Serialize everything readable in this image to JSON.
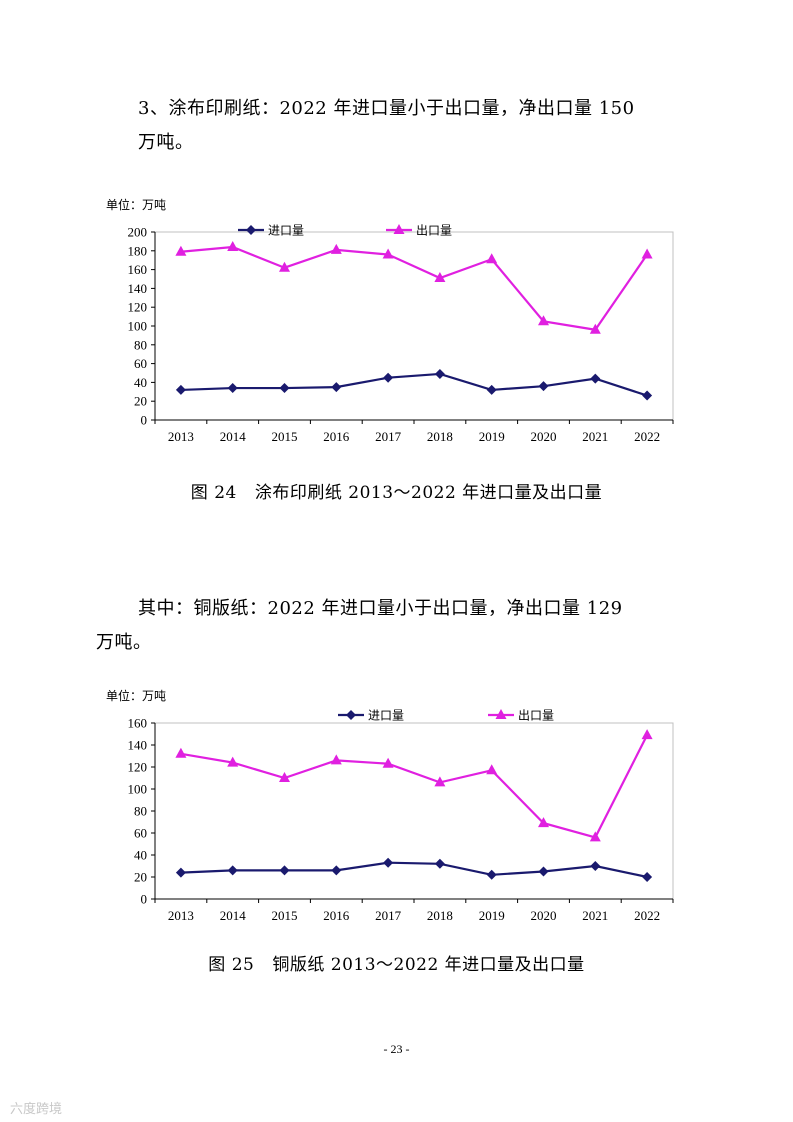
{
  "paragraphs": [
    {
      "line1": "3、涂布印刷纸：2022 年进口量小于出口量，净出口量 150",
      "line2": "万吨。"
    },
    {
      "line1": "其中：铜版纸：2022 年进口量小于出口量，净出口量 129",
      "line2": "万吨。"
    }
  ],
  "captions": [
    {
      "number": "图 24",
      "text": "涂布印刷纸 2013～2022 年进口量及出口量"
    },
    {
      "number": "图 25",
      "text": "铜版纸 2013～2022 年进口量及出口量"
    }
  ],
  "page_number": "- 23 -",
  "watermark": "六度跨境",
  "colors": {
    "import": "#1a1a6e",
    "export": "#e020e0"
  },
  "chart_data": [
    {
      "type": "line",
      "unit": "单位：万吨",
      "categories": [
        "2013",
        "2014",
        "2015",
        "2016",
        "2017",
        "2018",
        "2019",
        "2020",
        "2021",
        "2022"
      ],
      "ylim": [
        0,
        200
      ],
      "yticks": [
        0,
        20,
        40,
        60,
        80,
        100,
        120,
        140,
        160,
        180,
        200
      ],
      "series": [
        {
          "name": "进口量",
          "marker": "diamond",
          "values": [
            32,
            34,
            34,
            35,
            45,
            49,
            32,
            36,
            44,
            26
          ]
        },
        {
          "name": "出口量",
          "marker": "triangle",
          "values": [
            179,
            184,
            162,
            181,
            176,
            151,
            171,
            105,
            96,
            176
          ]
        }
      ],
      "legend": "top"
    },
    {
      "type": "line",
      "unit": "单位：万吨",
      "categories": [
        "2013",
        "2014",
        "2015",
        "2016",
        "2017",
        "2018",
        "2019",
        "2020",
        "2021",
        "2022"
      ],
      "ylim": [
        0,
        160
      ],
      "yticks": [
        0,
        20,
        40,
        60,
        80,
        100,
        120,
        140,
        160
      ],
      "series": [
        {
          "name": "进口量",
          "marker": "diamond",
          "values": [
            24,
            26,
            26,
            26,
            33,
            32,
            22,
            25,
            30,
            20
          ]
        },
        {
          "name": "出口量",
          "marker": "triangle",
          "values": [
            132,
            124,
            110,
            126,
            123,
            106,
            117,
            69,
            56,
            149
          ]
        }
      ],
      "legend": "top"
    }
  ]
}
